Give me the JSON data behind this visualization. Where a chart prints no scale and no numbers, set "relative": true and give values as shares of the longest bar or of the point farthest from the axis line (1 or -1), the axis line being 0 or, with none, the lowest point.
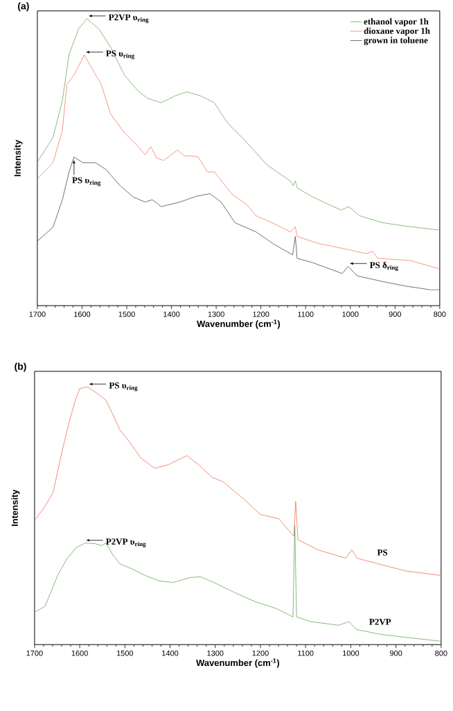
{
  "chart_data": [
    {
      "type": "line",
      "title": "(a)",
      "xlabel": "Wavenumber (cm$^{-1}$)",
      "ylabel": "Intensity",
      "relative": true,
      "xlim": [
        1700,
        800
      ],
      "xticks": [
        1700,
        1600,
        1500,
        1400,
        1300,
        1200,
        1100,
        1000,
        900,
        800
      ],
      "legend": "top right",
      "series": [
        {
          "name": "ethanol vapor 1h",
          "color": "#5b9b4b",
          "x": [
            1700,
            1665,
            1644,
            1629,
            1608,
            1589,
            1562,
            1536,
            1505,
            1474,
            1454,
            1423,
            1392,
            1366,
            1335,
            1304,
            1289,
            1273,
            1237,
            1186,
            1134,
            1128,
            1123,
            1119,
            1083,
            1021,
            1003,
            979,
            928,
            876,
            800
          ],
          "values": [
            0.5,
            0.586,
            0.715,
            0.875,
            0.964,
            1.0,
            0.964,
            0.9,
            0.803,
            0.747,
            0.723,
            0.707,
            0.731,
            0.745,
            0.731,
            0.707,
            0.67,
            0.634,
            0.578,
            0.49,
            0.434,
            0.418,
            0.435,
            0.41,
            0.378,
            0.333,
            0.345,
            0.313,
            0.289,
            0.277,
            0.263
          ]
        },
        {
          "name": "dioxane vapor 1h",
          "color": "#f26a4a",
          "x": [
            1700,
            1665,
            1644,
            1634,
            1618,
            1595,
            1572,
            1557,
            1536,
            1505,
            1474,
            1459,
            1446,
            1433,
            1417,
            1387,
            1371,
            1356,
            1340,
            1320,
            1304,
            1284,
            1263,
            1232,
            1211,
            1175,
            1134,
            1123,
            1119,
            1072,
            1010,
            964,
            951,
            938,
            866,
            800
          ],
          "values": [
            0.442,
            0.498,
            0.61,
            0.771,
            0.803,
            0.874,
            0.811,
            0.771,
            0.667,
            0.602,
            0.554,
            0.526,
            0.554,
            0.514,
            0.506,
            0.542,
            0.522,
            0.522,
            0.518,
            0.466,
            0.466,
            0.426,
            0.386,
            0.353,
            0.313,
            0.289,
            0.257,
            0.275,
            0.241,
            0.217,
            0.197,
            0.181,
            0.189,
            0.165,
            0.157,
            0.128
          ]
        },
        {
          "name": "grown in toluene",
          "color": "#333333",
          "x": [
            1700,
            1665,
            1644,
            1629,
            1618,
            1598,
            1570,
            1546,
            1515,
            1485,
            1459,
            1443,
            1423,
            1381,
            1345,
            1314,
            1289,
            1258,
            1211,
            1170,
            1129,
            1123,
            1119,
            1083,
            1018,
            1005,
            985,
            928,
            876,
            820,
            800
          ],
          "values": [
            0.225,
            0.273,
            0.369,
            0.466,
            0.518,
            0.498,
            0.498,
            0.474,
            0.418,
            0.378,
            0.361,
            0.369,
            0.345,
            0.361,
            0.381,
            0.39,
            0.361,
            0.289,
            0.257,
            0.213,
            0.177,
            0.241,
            0.165,
            0.149,
            0.112,
            0.137,
            0.104,
            0.084,
            0.068,
            0.055,
            0.055
          ]
        }
      ],
      "annotations": [
        {
          "text": "P2VP υ$_{ring}$",
          "x": 1589,
          "y": 1.0
        },
        {
          "text": "PS υ$_{ring}$",
          "x": 1595,
          "y": 0.874
        },
        {
          "text": "PS υ$_{ring}$",
          "x": 1618,
          "y": 0.518
        },
        {
          "text": "PS δ$_{ring}$",
          "x": 1005,
          "y": 0.137
        }
      ]
    },
    {
      "type": "line",
      "title": "(b)",
      "xlabel": "Wavenumber (cm$^{-1}$)",
      "ylabel": "Intensity",
      "relative": true,
      "xlim": [
        1700,
        800
      ],
      "xticks": [
        1700,
        1600,
        1500,
        1400,
        1300,
        1200,
        1100,
        1000,
        900,
        800
      ],
      "series": [
        {
          "name": "PS",
          "color": "#ee5a3c",
          "x": [
            1700,
            1680,
            1659,
            1639,
            1623,
            1608,
            1600,
            1583,
            1562,
            1542,
            1527,
            1511,
            1490,
            1465,
            1434,
            1404,
            1363,
            1337,
            1307,
            1282,
            1236,
            1200,
            1159,
            1126,
            1122,
            1117,
            1072,
            1011,
            998,
            986,
            930,
            879,
            800
          ],
          "values": [
            0.483,
            0.528,
            0.59,
            0.751,
            0.867,
            0.957,
            0.993,
            1.0,
            0.975,
            0.948,
            0.894,
            0.832,
            0.787,
            0.724,
            0.684,
            0.698,
            0.733,
            0.698,
            0.649,
            0.631,
            0.563,
            0.505,
            0.488,
            0.42,
            0.556,
            0.407,
            0.367,
            0.335,
            0.368,
            0.335,
            0.309,
            0.286,
            0.268
          ]
        },
        {
          "name": "P2VP",
          "color": "#4e9a3e",
          "x": [
            1700,
            1677,
            1669,
            1649,
            1629,
            1608,
            1588,
            1567,
            1552,
            1542,
            1527,
            1511,
            1486,
            1455,
            1424,
            1394,
            1356,
            1333,
            1303,
            1256,
            1211,
            1165,
            1134,
            1128,
            1124,
            1120,
            1088,
            1049,
            1027,
            1004,
            988,
            935,
            873,
            800
          ],
          "values": [
            0.126,
            0.148,
            0.182,
            0.268,
            0.331,
            0.376,
            0.394,
            0.392,
            0.384,
            0.394,
            0.349,
            0.313,
            0.295,
            0.268,
            0.247,
            0.241,
            0.26,
            0.263,
            0.241,
            0.201,
            0.166,
            0.14,
            0.113,
            0.107,
            0.464,
            0.107,
            0.089,
            0.08,
            0.075,
            0.089,
            0.059,
            0.04,
            0.027,
            0.013
          ]
        }
      ],
      "annotations": [
        {
          "text": "PS υ$_{ring}$",
          "x": 1583,
          "y": 1.0
        },
        {
          "text": "P2VP υ$_{ring}$",
          "x": 1590,
          "y": 0.394
        }
      ]
    }
  ]
}
